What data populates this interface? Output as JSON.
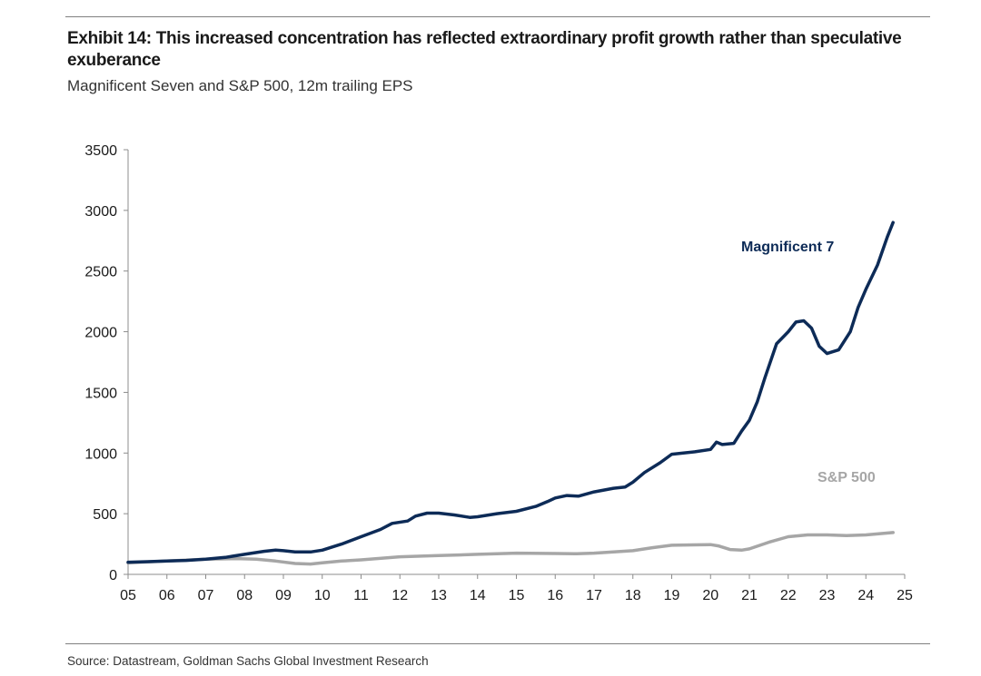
{
  "header": {
    "title": "Exhibit 14: This increased concentration has reflected extraordinary profit growth rather than speculative exuberance",
    "subtitle": "Magnificent Seven and S&P 500, 12m trailing EPS"
  },
  "footer": {
    "source": "Source: Datastream, Goldman Sachs Global Investment Research"
  },
  "chart_data": {
    "type": "line",
    "title": "Exhibit 14: This increased concentration has reflected extraordinary profit growth rather than speculative exuberance",
    "subtitle": "Magnificent Seven and S&P 500, 12m trailing EPS",
    "xlabel": "",
    "ylabel": "",
    "xlim": [
      2005,
      2025
    ],
    "ylim": [
      0,
      3500
    ],
    "x_ticks": [
      2005,
      2006,
      2007,
      2008,
      2009,
      2010,
      2011,
      2012,
      2013,
      2014,
      2015,
      2016,
      2017,
      2018,
      2019,
      2020,
      2021,
      2022,
      2023,
      2024,
      2025
    ],
    "x_tick_labels": [
      "05",
      "06",
      "07",
      "08",
      "09",
      "10",
      "11",
      "12",
      "13",
      "14",
      "15",
      "16",
      "17",
      "18",
      "19",
      "20",
      "21",
      "22",
      "23",
      "24",
      "25"
    ],
    "y_ticks": [
      0,
      500,
      1000,
      1500,
      2000,
      2500,
      3000,
      3500
    ],
    "y_tick_labels": [
      "0",
      "500",
      "1000",
      "1500",
      "2000",
      "2500",
      "3000",
      "3500"
    ],
    "grid": false,
    "legend": "inline labels",
    "series": [
      {
        "name": "Magnificent 7",
        "color": "#0d2b57",
        "points": [
          [
            2005.0,
            100
          ],
          [
            2005.5,
            105
          ],
          [
            2006.0,
            110
          ],
          [
            2006.5,
            115
          ],
          [
            2007.0,
            125
          ],
          [
            2007.5,
            140
          ],
          [
            2008.0,
            165
          ],
          [
            2008.5,
            190
          ],
          [
            2008.8,
            200
          ],
          [
            2009.0,
            195
          ],
          [
            2009.3,
            185
          ],
          [
            2009.7,
            185
          ],
          [
            2010.0,
            200
          ],
          [
            2010.5,
            250
          ],
          [
            2011.0,
            310
          ],
          [
            2011.5,
            370
          ],
          [
            2011.8,
            420
          ],
          [
            2012.2,
            440
          ],
          [
            2012.4,
            480
          ],
          [
            2012.7,
            505
          ],
          [
            2013.0,
            505
          ],
          [
            2013.4,
            490
          ],
          [
            2013.8,
            470
          ],
          [
            2014.0,
            475
          ],
          [
            2014.5,
            500
          ],
          [
            2015.0,
            520
          ],
          [
            2015.5,
            560
          ],
          [
            2015.8,
            600
          ],
          [
            2016.0,
            630
          ],
          [
            2016.3,
            650
          ],
          [
            2016.6,
            645
          ],
          [
            2017.0,
            680
          ],
          [
            2017.5,
            710
          ],
          [
            2017.8,
            720
          ],
          [
            2018.0,
            760
          ],
          [
            2018.3,
            840
          ],
          [
            2018.7,
            920
          ],
          [
            2019.0,
            990
          ],
          [
            2019.3,
            1000
          ],
          [
            2019.6,
            1010
          ],
          [
            2020.0,
            1030
          ],
          [
            2020.15,
            1090
          ],
          [
            2020.3,
            1070
          ],
          [
            2020.6,
            1080
          ],
          [
            2020.8,
            1180
          ],
          [
            2021.0,
            1270
          ],
          [
            2021.2,
            1420
          ],
          [
            2021.4,
            1620
          ],
          [
            2021.7,
            1900
          ],
          [
            2022.0,
            2000
          ],
          [
            2022.2,
            2080
          ],
          [
            2022.4,
            2090
          ],
          [
            2022.6,
            2030
          ],
          [
            2022.8,
            1880
          ],
          [
            2023.0,
            1820
          ],
          [
            2023.3,
            1850
          ],
          [
            2023.6,
            2000
          ],
          [
            2023.8,
            2200
          ],
          [
            2024.0,
            2350
          ],
          [
            2024.3,
            2550
          ],
          [
            2024.55,
            2780
          ],
          [
            2024.7,
            2900
          ]
        ]
      },
      {
        "name": "S&P 500",
        "color": "#a6a6a6",
        "points": [
          [
            2005.0,
            95
          ],
          [
            2006.0,
            110
          ],
          [
            2007.0,
            125
          ],
          [
            2007.8,
            130
          ],
          [
            2008.3,
            125
          ],
          [
            2008.8,
            110
          ],
          [
            2009.3,
            90
          ],
          [
            2009.7,
            85
          ],
          [
            2010.0,
            95
          ],
          [
            2010.5,
            110
          ],
          [
            2011.0,
            120
          ],
          [
            2012.0,
            145
          ],
          [
            2013.0,
            155
          ],
          [
            2014.0,
            165
          ],
          [
            2015.0,
            175
          ],
          [
            2016.0,
            172
          ],
          [
            2016.5,
            170
          ],
          [
            2017.0,
            175
          ],
          [
            2018.0,
            195
          ],
          [
            2018.5,
            220
          ],
          [
            2019.0,
            240
          ],
          [
            2020.0,
            245
          ],
          [
            2020.2,
            235
          ],
          [
            2020.5,
            205
          ],
          [
            2020.8,
            200
          ],
          [
            2021.0,
            210
          ],
          [
            2021.5,
            265
          ],
          [
            2022.0,
            310
          ],
          [
            2022.5,
            325
          ],
          [
            2023.0,
            325
          ],
          [
            2023.5,
            320
          ],
          [
            2024.0,
            325
          ],
          [
            2024.7,
            345
          ]
        ]
      }
    ],
    "annotations": [
      {
        "text": "Magnificent 7",
        "color": "#0d2b57",
        "series": "Magnificent 7"
      },
      {
        "text": "S&P 500",
        "color": "#a6a6a6",
        "series": "S&P 500"
      }
    ]
  }
}
